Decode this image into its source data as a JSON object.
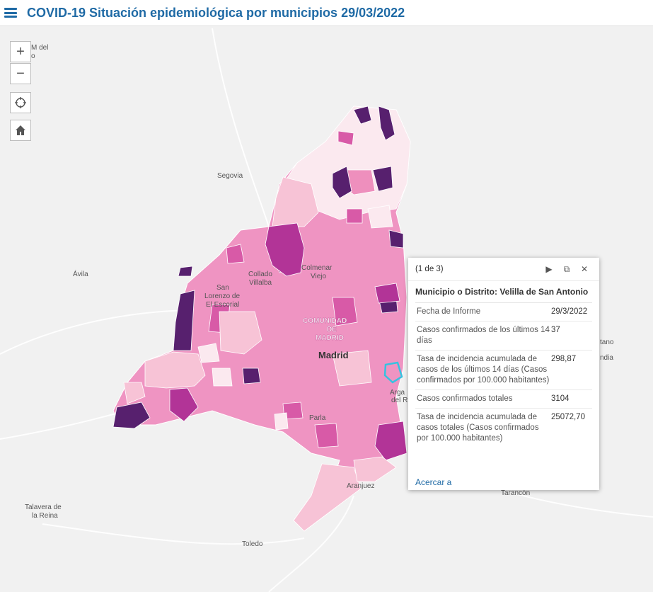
{
  "header": {
    "title": "COVID-19 Situación epidemiológica por municipios 29/03/2022"
  },
  "controls": {
    "zoom_in": "+",
    "zoom_out": "−"
  },
  "map_labels": {
    "segovia": "Segovia",
    "avila": "Ávila",
    "collado": "Collado",
    "villalba": "Villalba",
    "colmenar": "Colmenar",
    "viejo": "Viejo",
    "san": "San",
    "lorenzo_de": "Lorenzo de",
    "el_escorial": "El Escorial",
    "comunidad": "COMUNIDAD",
    "de": "DE",
    "madrid_upper": "MADRID",
    "madrid": "Madrid",
    "parla": "Parla",
    "aranjuez": "Aranjuez",
    "talavera_de": "Talavera de",
    "la_reina": "la Reina",
    "toledo": "Toledo",
    "tarancon": "Tarancón",
    "arga": "Arga",
    "del_r": "del R",
    "m_del": "M del",
    "o_frag": "o",
    "tano": "tano",
    "ndia": "ndia"
  },
  "colors": {
    "light": "#fbe9ef",
    "pale": "#f7c3d6",
    "mid": "#ee8fbd",
    "strong": "#d85aa7",
    "dark": "#b23497",
    "darkest": "#57206e",
    "selection": "#37c2e0",
    "accent": "#1f6aa5"
  },
  "popup": {
    "count": "(1 de 3)",
    "title": "Municipio o Distrito: Velilla de San Antonio",
    "fields": [
      {
        "label": "Fecha de Informe",
        "value": "29/3/2022"
      },
      {
        "label": "Casos confirmados de los últimos 14 días",
        "value": "37"
      },
      {
        "label": "Tasa de incidencia acumulada de casos de los últimos 14 días (Casos confirmados por 100.000 habitantes)",
        "value": "298,87"
      },
      {
        "label": "Casos confirmados totales",
        "value": "3104"
      },
      {
        "label": "Tasa de incidencia acumulada de casos totales (Casos confirmados por 100.000 habitantes)",
        "value": "25072,70"
      }
    ],
    "zoom_link": "Acercar a"
  }
}
